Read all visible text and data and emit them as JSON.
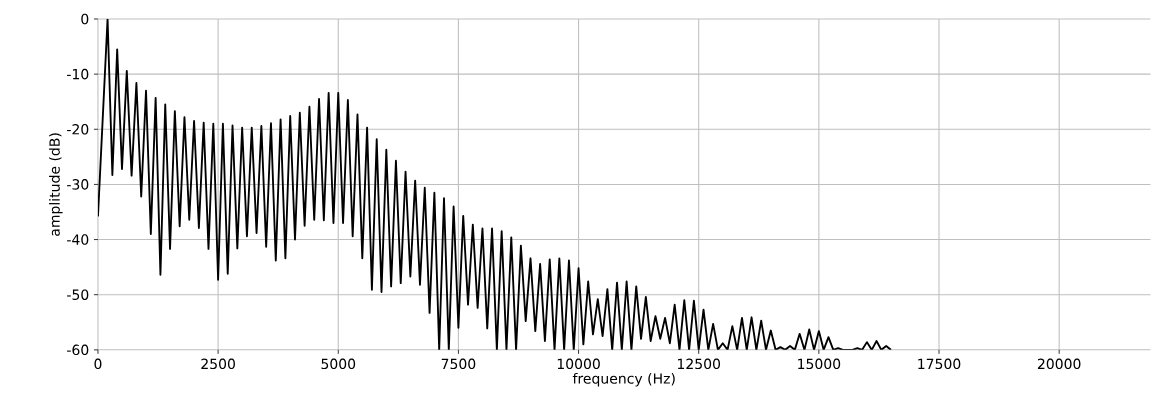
{
  "chart_data": {
    "type": "line",
    "xlabel": "frequency (Hz)",
    "ylabel": "amplitude (dB)",
    "xlim": [
      0,
      21900
    ],
    "ylim": [
      -60,
      0
    ],
    "xticks": [
      0,
      2500,
      5000,
      7500,
      10000,
      12500,
      15000,
      17500,
      20000
    ],
    "yticks": [
      -60,
      -50,
      -40,
      -30,
      -20,
      -10,
      0
    ],
    "grid": true,
    "color": "#000000",
    "x": [
      0,
      200,
      300,
      400,
      500,
      600,
      700,
      800,
      900,
      1000,
      1100,
      1200,
      1300,
      1400,
      1500,
      1600,
      1700,
      1800,
      1900,
      2000,
      2100,
      2200,
      2300,
      2400,
      2500,
      2600,
      2700,
      2800,
      2900,
      3000,
      3100,
      3200,
      3300,
      3400,
      3500,
      3600,
      3700,
      3800,
      3900,
      4000,
      4100,
      4200,
      4300,
      4400,
      4500,
      4600,
      4700,
      4800,
      4900,
      5000,
      5100,
      5200,
      5300,
      5400,
      5500,
      5600,
      5700,
      5800,
      5900,
      6000,
      6100,
      6200,
      6300,
      6400,
      6500,
      6600,
      6700,
      6800,
      6900,
      7000,
      7100,
      7200,
      7300,
      7400,
      7500,
      7600,
      7700,
      7800,
      7900,
      8000,
      8100,
      8200,
      8300,
      8400,
      8500,
      8600,
      8700,
      8800,
      8900,
      9000,
      9100,
      9200,
      9300,
      9400,
      9500,
      9600,
      9700,
      9800,
      9900,
      10000,
      10100,
      10200,
      10300,
      10400,
      10500,
      10600,
      10700,
      10800,
      10900,
      11000,
      11100,
      11200,
      11300,
      11400,
      11500,
      11600,
      11700,
      11800,
      11900,
      12000,
      12100,
      12200,
      12300,
      12400,
      12500,
      12600,
      12700,
      12800,
      12900,
      13000,
      13100,
      13200,
      13300,
      13400,
      13500,
      13600,
      13700,
      13800,
      13900,
      14000,
      14100,
      14200,
      14300,
      14400,
      14500,
      14600,
      14700,
      14800,
      14900,
      15000,
      15100,
      15200,
      15300,
      15400,
      15500,
      15600,
      15700,
      15800,
      15900,
      16000,
      16100,
      16200,
      16300,
      16400,
      16500
    ],
    "values": [
      -35.8,
      0,
      -28.3,
      -5.5,
      -27.2,
      -9.4,
      -28.4,
      -11.6,
      -32.2,
      -13.0,
      -39.0,
      -14.3,
      -46.4,
      -15.5,
      -41.7,
      -16.7,
      -37.6,
      -17.8,
      -36.4,
      -18.5,
      -37.9,
      -18.8,
      -41.7,
      -19.0,
      -47.3,
      -19.0,
      -46.2,
      -19.3,
      -41.6,
      -19.7,
      -39.4,
      -19.7,
      -38.8,
      -19.4,
      -41.3,
      -18.9,
      -43.8,
      -18.2,
      -43.4,
      -17.6,
      -40.0,
      -17.0,
      -37.5,
      -15.9,
      -36.4,
      -14.5,
      -36.5,
      -13.4,
      -37.0,
      -13.4,
      -37.0,
      -14.7,
      -39.4,
      -17.3,
      -43.4,
      -19.7,
      -49.1,
      -21.8,
      -49.5,
      -23.7,
      -48.5,
      -25.7,
      -47.9,
      -27.7,
      -46.7,
      -29.3,
      -48.2,
      -30.6,
      -53.3,
      -31.5,
      -60,
      -32.5,
      -60,
      -34.0,
      -56.0,
      -35.7,
      -51.8,
      -37.3,
      -52.4,
      -38.0,
      -56.1,
      -38.0,
      -60,
      -38.5,
      -60,
      -39.6,
      -60,
      -41.1,
      -54.8,
      -43.4,
      -56.6,
      -44.4,
      -58.4,
      -43.6,
      -60,
      -43.4,
      -60,
      -43.8,
      -60,
      -45.2,
      -59,
      -47.6,
      -57.2,
      -50.8,
      -57.5,
      -49.0,
      -60,
      -47.8,
      -60,
      -47.6,
      -60,
      -48.5,
      -58.0,
      -50.4,
      -58.4,
      -53.9,
      -58.0,
      -54.2,
      -58.8,
      -51.8,
      -60,
      -51.0,
      -60,
      -51.1,
      -60,
      -52.7,
      -60,
      -55.3,
      -60,
      -58.8,
      -60,
      -55.7,
      -60,
      -54.2,
      -60,
      -54.1,
      -60,
      -54.7,
      -60,
      -56.5,
      -60,
      -59.5,
      -60,
      -59.3,
      -60,
      -57.1,
      -60,
      -56.3,
      -60,
      -56.6,
      -60,
      -57.7,
      -60,
      -59.7,
      -60,
      -60,
      -60,
      -59.7,
      -60,
      -58.6,
      -60,
      -58.4,
      -60,
      -59.3,
      -60
    ]
  }
}
